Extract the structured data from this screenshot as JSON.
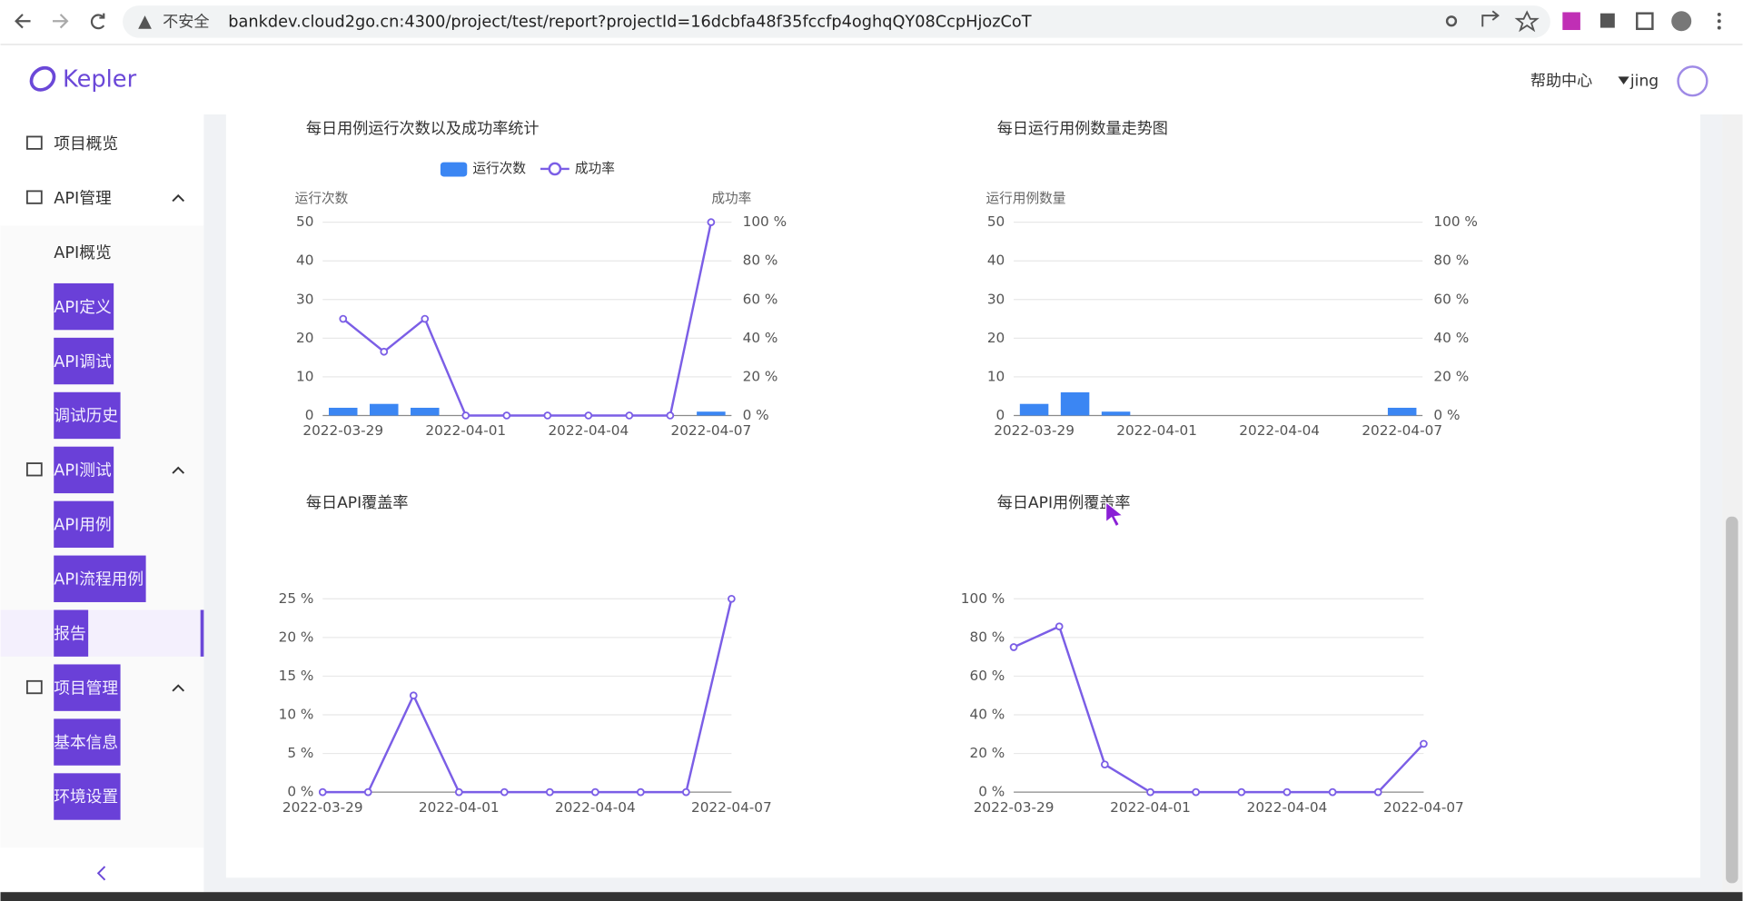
{
  "browser": {
    "security": "不安全",
    "url": "bankdev.cloud2go.cn:4300/project/test/report?projectId=16dcbfa48f35fccfp4oghqQY08CcpHjozCoT"
  },
  "header": {
    "logo": "Kepler",
    "help": "帮助中心",
    "user": "jing"
  },
  "sidebar": {
    "overview": "项目概览",
    "groups": [
      {
        "title": "API管理",
        "items": [
          "API概览",
          "API定义",
          "API调试",
          "调试历史"
        ]
      },
      {
        "title": "API测试",
        "items": [
          "API用例",
          "API流程用例",
          "报告"
        ]
      },
      {
        "title": "项目管理",
        "items": [
          "基本信息",
          "环境设置"
        ]
      }
    ]
  },
  "chart_data": [
    {
      "type": "combo",
      "title": "每日用例运行次数以及成功率统计",
      "legend": "top",
      "ylabel": "运行次数",
      "y2label": "成功率",
      "categories": [
        "2022-03-29",
        null,
        null,
        "2022-04-01",
        null,
        null,
        "2022-04-04",
        null,
        null,
        "2022-04-07"
      ],
      "series": [
        {
          "name": "运行次数",
          "type": "bar",
          "color": "#3b86f3",
          "values": [
            2,
            3,
            2,
            0,
            0,
            0,
            0,
            0,
            0,
            1
          ]
        },
        {
          "name": "成功率",
          "type": "line",
          "axis": "y2",
          "color": "#7b5ee6",
          "values": [
            50,
            33,
            50,
            0,
            0,
            0,
            0,
            0,
            0,
            100
          ]
        }
      ],
      "ylim": [
        0,
        50
      ],
      "yticks": [
        0,
        10,
        20,
        30,
        40,
        50
      ],
      "y2lim": [
        0,
        100
      ],
      "y2ticks": [
        {
          "value": 0,
          "label": "0 %"
        },
        {
          "value": 20,
          "label": "20 %"
        },
        {
          "value": 40,
          "label": "40 %"
        },
        {
          "value": 60,
          "label": "60 %"
        },
        {
          "value": 80,
          "label": "80 %"
        },
        {
          "value": 100,
          "label": "100 %"
        }
      ],
      "grid": true
    },
    {
      "type": "bar",
      "title": "每日运行用例数量走势图",
      "ylabel": "运行用例数量",
      "color": "#3b86f3",
      "categories": [
        "2022-03-29",
        null,
        null,
        "2022-04-01",
        null,
        null,
        "2022-04-04",
        null,
        null,
        "2022-04-07"
      ],
      "values": [
        3,
        6,
        1,
        0,
        0,
        0,
        0,
        0,
        0,
        2
      ],
      "ylim": [
        0,
        50
      ],
      "yticks": [
        0,
        10,
        20,
        30,
        40,
        50
      ],
      "y2lim": [
        0,
        100
      ],
      "y2ticks": [
        {
          "value": 0,
          "label": "0 %"
        },
        {
          "value": 20,
          "label": "20 %"
        },
        {
          "value": 40,
          "label": "40 %"
        },
        {
          "value": 60,
          "label": "60 %"
        },
        {
          "value": 80,
          "label": "80 %"
        },
        {
          "value": 100,
          "label": "100 %"
        }
      ],
      "grid": true
    },
    {
      "type": "line",
      "title": "每日API覆盖率",
      "color": "#7b5ee6",
      "categories": [
        "2022-03-29",
        null,
        null,
        "2022-04-01",
        null,
        null,
        "2022-04-04",
        null,
        null,
        "2022-04-07"
      ],
      "values": [
        0,
        0,
        12.5,
        0,
        0,
        0,
        0,
        0,
        0,
        25
      ],
      "ylim": [
        0,
        25
      ],
      "yticks": [
        {
          "value": 0,
          "label": "0 %"
        },
        {
          "value": 5,
          "label": "5 %"
        },
        {
          "value": 10,
          "label": "10 %"
        },
        {
          "value": 15,
          "label": "15 %"
        },
        {
          "value": 20,
          "label": "20 %"
        },
        {
          "value": 25,
          "label": "25 %"
        }
      ],
      "grid": true
    },
    {
      "type": "line",
      "title": "每日API用例覆盖率",
      "color": "#7b5ee6",
      "categories": [
        "2022-03-29",
        null,
        null,
        "2022-04-01",
        null,
        null,
        "2022-04-04",
        null,
        null,
        "2022-04-07"
      ],
      "values": [
        75,
        85.7,
        14.3,
        0,
        0,
        0,
        0,
        0,
        0,
        25
      ],
      "ylim": [
        0,
        100
      ],
      "yticks": [
        {
          "value": 0,
          "label": "0 %"
        },
        {
          "value": 20,
          "label": "20 %"
        },
        {
          "value": 40,
          "label": "40 %"
        },
        {
          "value": 60,
          "label": "60 %"
        },
        {
          "value": 80,
          "label": "80 %"
        },
        {
          "value": 100,
          "label": "100 %"
        }
      ],
      "grid": true
    }
  ]
}
